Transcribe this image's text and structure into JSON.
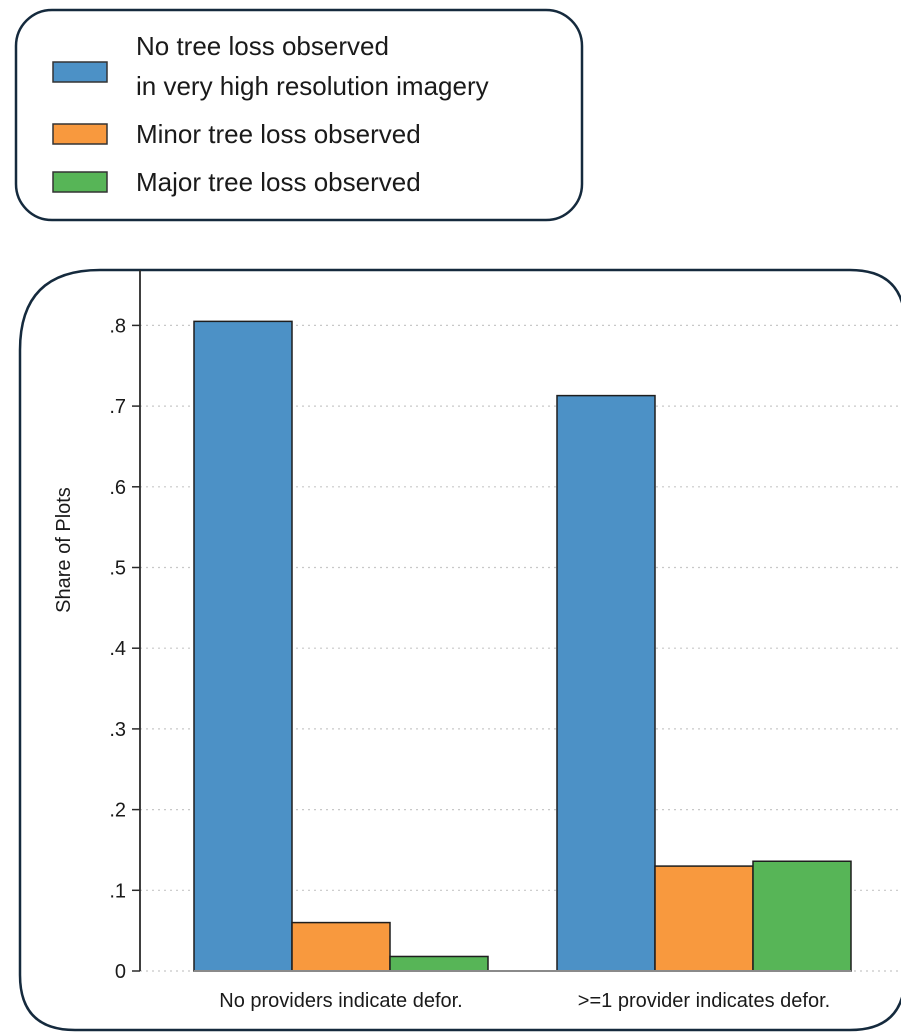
{
  "chart_data": {
    "type": "bar",
    "categories": [
      "No providers indicate defor.",
      ">=1 provider indicates defor."
    ],
    "series": [
      {
        "name": "No tree loss observed\nin very high resolution imagery",
        "values": [
          0.805,
          0.713
        ],
        "color": "#4c91c6"
      },
      {
        "name": "Minor tree loss observed",
        "values": [
          0.06,
          0.13
        ],
        "color": "#f8993e"
      },
      {
        "name": "Major tree loss observed",
        "values": [
          0.018,
          0.136
        ],
        "color": "#57b557"
      }
    ],
    "xlabel": "",
    "ylabel": "Share of Plots",
    "ylim": [
      0,
      0.85
    ],
    "yticks": [
      0,
      0.1,
      0.2,
      0.3,
      0.4,
      0.5,
      0.6,
      0.7,
      0.8
    ],
    "yticklabels": [
      "0",
      ".1",
      ".2",
      ".3",
      ".4",
      ".5",
      ".6",
      ".7",
      ".8"
    ],
    "grid": true,
    "legend_position": "top-left"
  },
  "legend": {
    "items": [
      {
        "line1": "No tree loss observed",
        "line2": "in very high resolution imagery",
        "color": "#4c91c6"
      },
      {
        "line1": "Minor tree loss observed",
        "line2": "",
        "color": "#f8993e"
      },
      {
        "line1": "Major tree loss observed",
        "line2": "",
        "color": "#57b557"
      }
    ]
  },
  "colors": {
    "frame": "#152a3d",
    "axis": "#2a2a2a",
    "grid": "#c8c8c8",
    "bar_stroke": "#1e1e1e"
  }
}
